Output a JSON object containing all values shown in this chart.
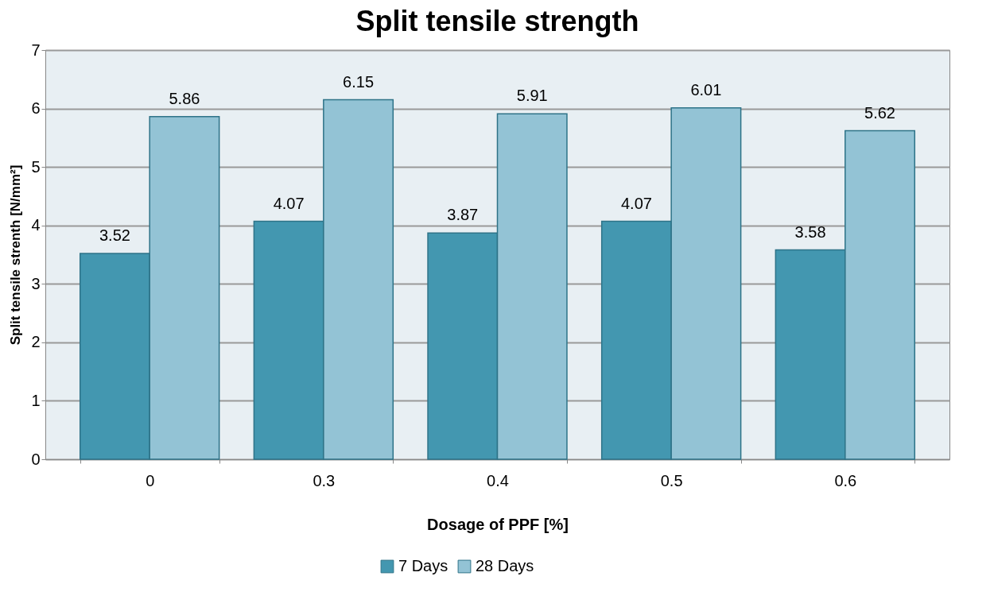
{
  "chart_data": {
    "type": "bar",
    "title": "Split tensile strength",
    "xlabel": "Dosage of PPF [%]",
    "ylabel": "Split tensile strenth [N/mm²]",
    "categories": [
      "0",
      "0.3",
      "0.4",
      "0.5",
      "0.6"
    ],
    "series": [
      {
        "name": "7 Days",
        "color": "#4397b0",
        "values": [
          3.52,
          4.07,
          3.87,
          4.07,
          3.58
        ]
      },
      {
        "name": "28 Days",
        "color": "#93c3d5",
        "values": [
          5.86,
          6.15,
          5.91,
          6.01,
          5.62
        ]
      }
    ],
    "ylim": [
      0,
      7
    ],
    "yticks": [
      0,
      1,
      2,
      3,
      4,
      5,
      6,
      7
    ],
    "grid": "y",
    "legend": "bottom",
    "data_labels": true
  }
}
